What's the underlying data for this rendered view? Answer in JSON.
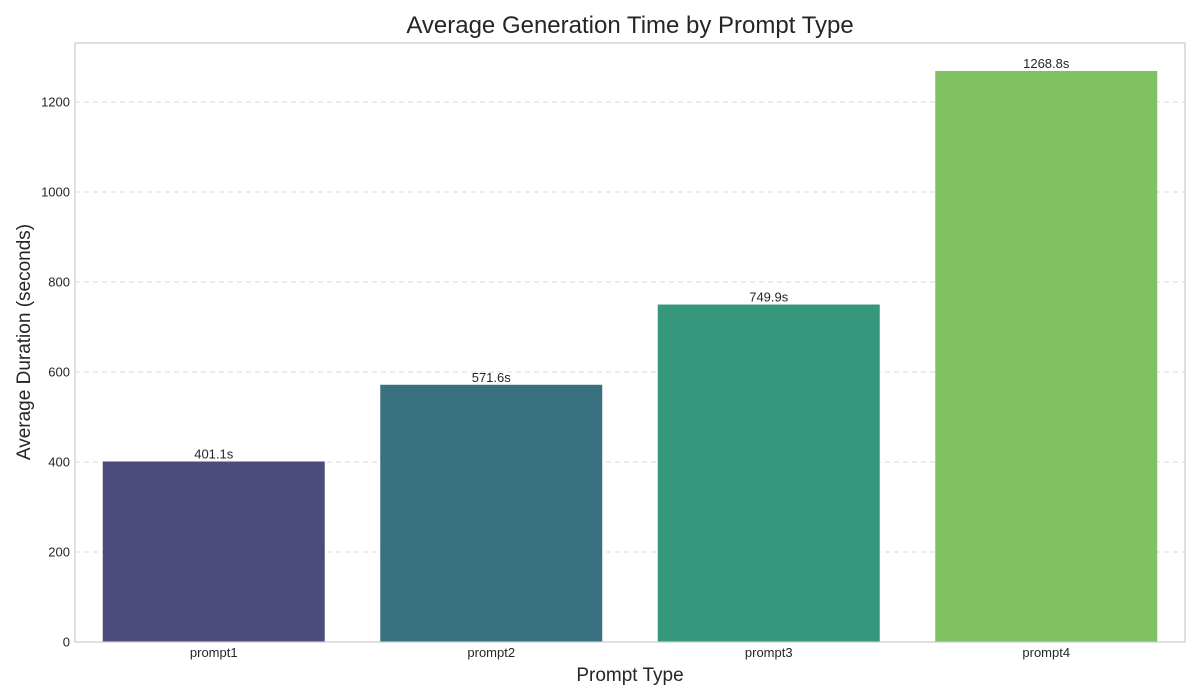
{
  "chart_data": {
    "type": "bar",
    "title": "Average Generation Time by Prompt Type",
    "xlabel": "Prompt Type",
    "ylabel": "Average Duration (seconds)",
    "categories": [
      "prompt1",
      "prompt2",
      "prompt3",
      "prompt4"
    ],
    "values": [
      401.1,
      571.6,
      749.9,
      1268.8
    ],
    "value_labels": [
      "401.1s",
      "571.6s",
      "749.9s",
      "1268.8s"
    ],
    "colors": [
      "#4c4c7c",
      "#387180",
      "#35977b",
      "#80c262"
    ],
    "ylim": [
      0,
      1268.8
    ],
    "yticks": [
      0,
      200,
      400,
      600,
      800,
      1000,
      1200
    ],
    "ytick_labels": [
      "0",
      "200",
      "400",
      "600",
      "800",
      "1000",
      "1200"
    ],
    "grid": "horizontal dashed",
    "legend": "none"
  }
}
